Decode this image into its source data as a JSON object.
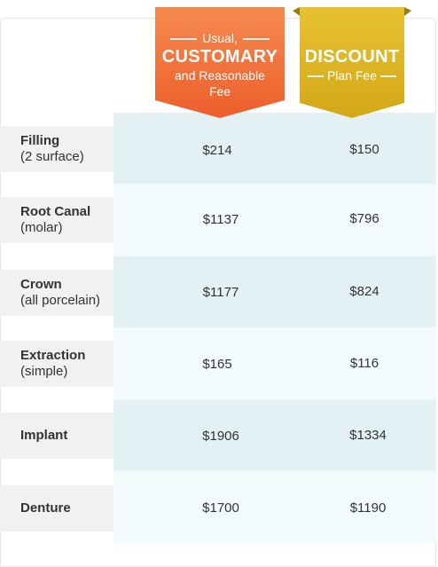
{
  "headers": {
    "customary": {
      "top": "Usual,",
      "main": "CUSTOMARY",
      "line2": "and Reasonable",
      "line3": "Fee",
      "color": "#f26b36"
    },
    "discount": {
      "main": "DISCOUNT",
      "sub": "Plan Fee",
      "color": "#dcb420"
    }
  },
  "rows": [
    {
      "name": "Filling",
      "sub": "(2 surface)",
      "customary": "$214",
      "discount": "$150"
    },
    {
      "name": "Root Canal",
      "sub": "(molar)",
      "customary": "$1137",
      "discount": "$796"
    },
    {
      "name": "Crown",
      "sub": "(all porcelain)",
      "customary": "$1177",
      "discount": "$824"
    },
    {
      "name": "Extraction",
      "sub": "(simple)",
      "customary": "$165",
      "discount": "$116"
    },
    {
      "name": "Implant",
      "sub": "",
      "customary": "$1906",
      "discount": "$1334"
    },
    {
      "name": "Denture",
      "sub": "",
      "customary": "$1700",
      "discount": "$1190"
    }
  ]
}
